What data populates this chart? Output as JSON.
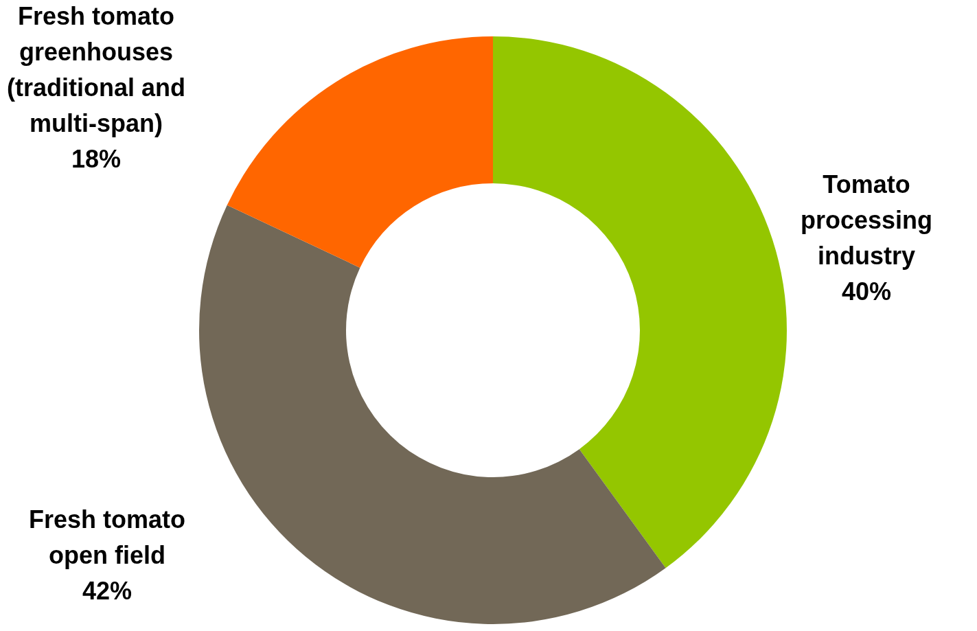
{
  "chart_data": {
    "type": "donut",
    "categories": [
      "Tomato processing industry",
      "Fresh tomato open field",
      "Fresh tomato greenhouses (traditional and multi-span)"
    ],
    "values": [
      40,
      42,
      18
    ],
    "value_labels": [
      "40%",
      "42%",
      "18%"
    ],
    "colors": [
      "#94c600",
      "#726857",
      "#ff6600"
    ],
    "legend": false
  }
}
